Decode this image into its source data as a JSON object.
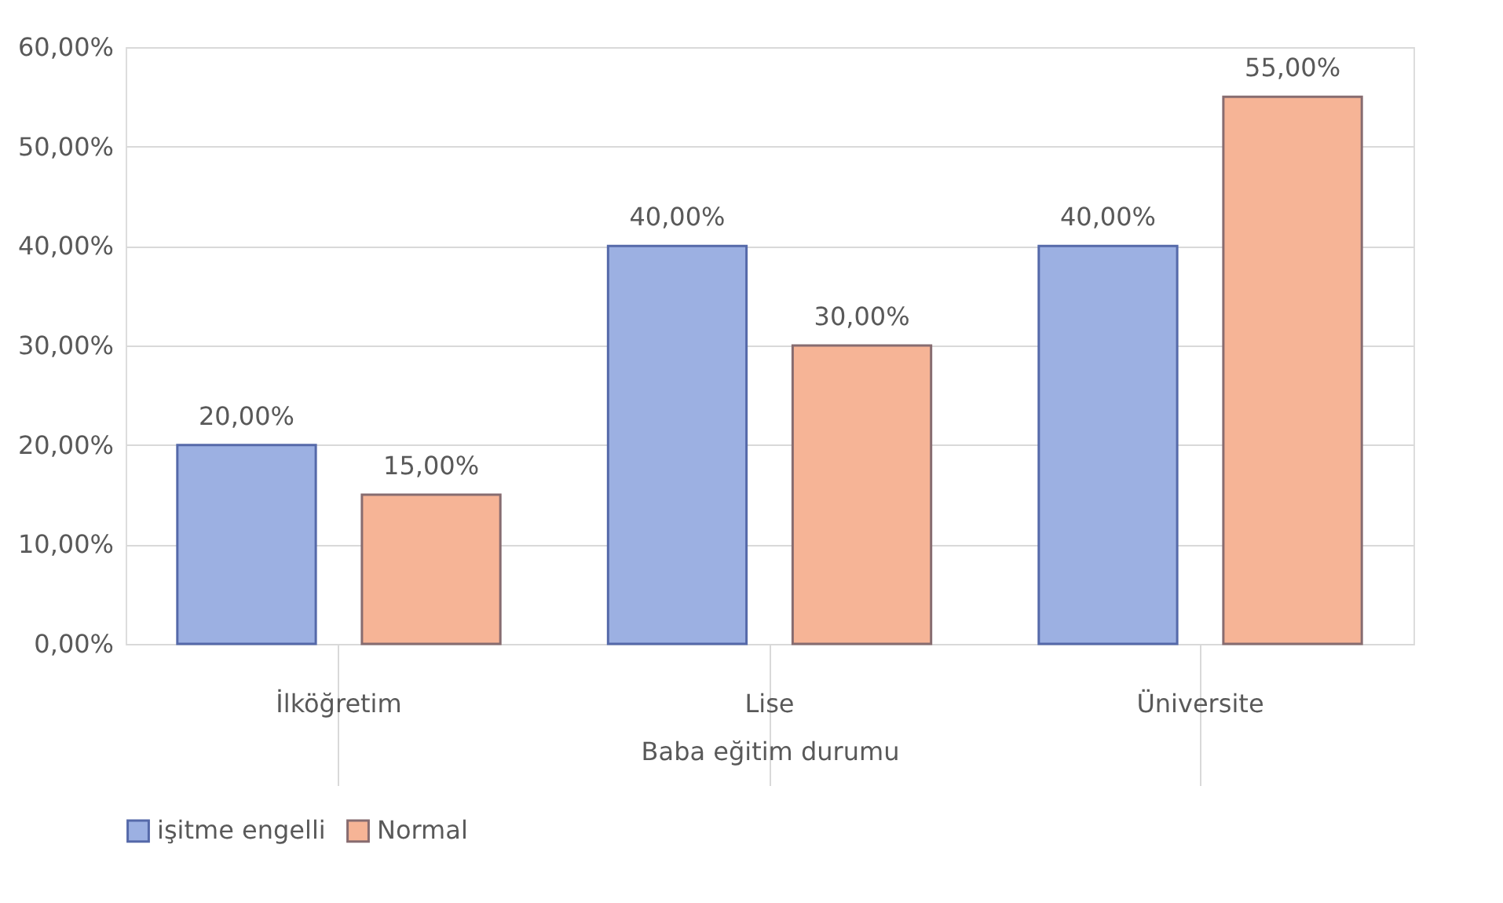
{
  "chart_data": {
    "type": "bar",
    "xlabel": "Baba eğitim durumu",
    "categories": [
      "İlköğretim",
      "Lise",
      "Üniversite"
    ],
    "series": [
      {
        "name": "işitme engelli",
        "color": "#9cb0e2",
        "values": [
          20,
          40,
          40
        ],
        "value_labels": [
          "20,00%",
          "40,00%",
          "40,00%"
        ]
      },
      {
        "name": "Normal",
        "color": "#f6b496",
        "values": [
          15,
          30,
          55
        ],
        "value_labels": [
          "15,00%",
          "30,00%",
          "55,00%"
        ]
      }
    ],
    "ylim": [
      0,
      60
    ],
    "yticks": [
      {
        "value": 0,
        "label": "0,00%"
      },
      {
        "value": 10,
        "label": "10,00%"
      },
      {
        "value": 20,
        "label": "20,00%"
      },
      {
        "value": 30,
        "label": "30,00%"
      },
      {
        "value": 40,
        "label": "40,00%"
      },
      {
        "value": 50,
        "label": "50,00%"
      },
      {
        "value": 60,
        "label": "60,00%"
      }
    ],
    "grid": "y",
    "legend": "bottom"
  }
}
